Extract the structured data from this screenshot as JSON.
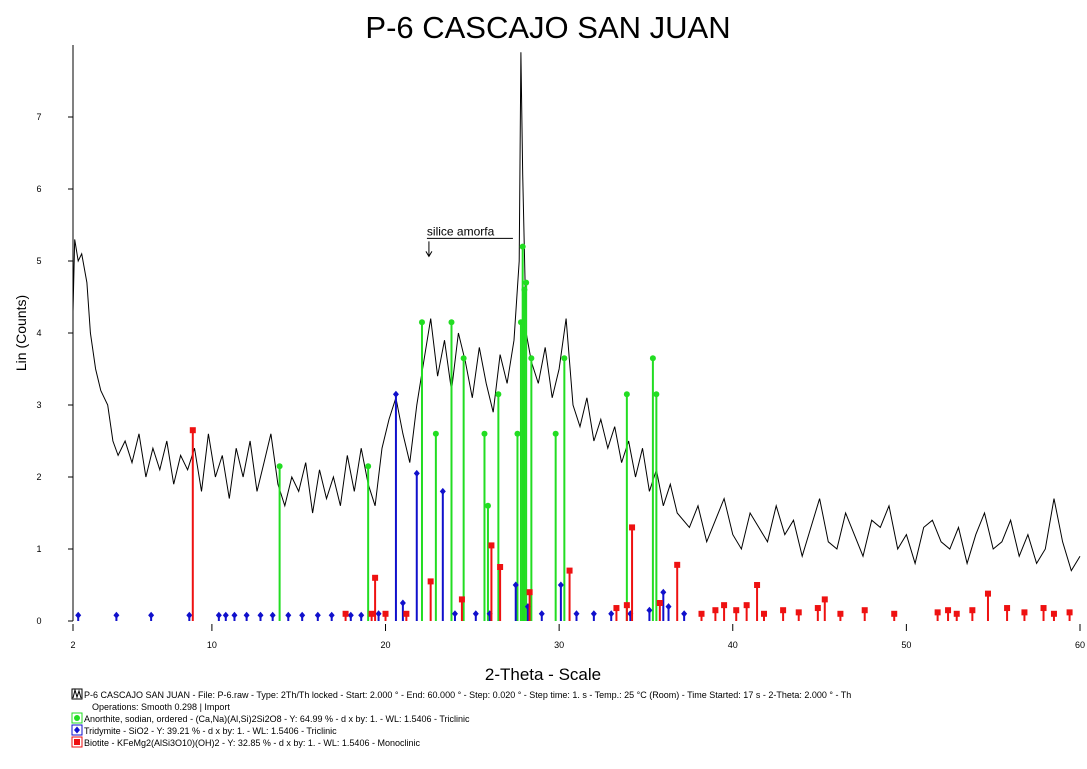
{
  "chart_data": {
    "type": "line",
    "title": "P-6 CASCAJO SAN JUAN",
    "x_label": "2-Theta - Scale",
    "y_label": "Lin (Counts)",
    "xlim": [
      2,
      60
    ],
    "ylim": [
      0,
      8
    ],
    "xticks": [
      2,
      10,
      20,
      30,
      40,
      50,
      60
    ],
    "yticks": [
      0,
      1,
      2,
      3,
      4,
      5,
      6,
      7
    ],
    "annotation": {
      "text": "silice amorfa",
      "x": 22.5,
      "y": 5.3
    },
    "legend_note": "Operations: Smooth 0.298 | Import",
    "series": [
      {
        "name": "P-6 CASCAJO SAN JUAN - File: P-6.raw - Type: 2Th/Th locked - Start: 2.000 ° - End: 60.000 ° - Step: 0.020 ° - Step time: 1. s - Temp.: 25 °C (Room) - Time Started: 17 s - 2-Theta: 2.000 ° - Th",
        "color": "#000000",
        "style": "line",
        "x": [
          2.0,
          2.1,
          2.3,
          2.5,
          2.8,
          3.0,
          3.3,
          3.6,
          4.0,
          4.3,
          4.6,
          5.0,
          5.4,
          5.8,
          6.2,
          6.6,
          7.0,
          7.4,
          7.8,
          8.2,
          8.6,
          9.0,
          9.4,
          9.8,
          10.2,
          10.6,
          11.0,
          11.4,
          11.8,
          12.2,
          12.6,
          13.0,
          13.4,
          13.8,
          14.2,
          14.6,
          15.0,
          15.4,
          15.8,
          16.2,
          16.6,
          17.0,
          17.4,
          17.8,
          18.2,
          18.6,
          19.0,
          19.4,
          19.8,
          20.2,
          20.6,
          21.0,
          21.4,
          21.8,
          22.2,
          22.6,
          23.0,
          23.4,
          23.8,
          24.2,
          24.6,
          25.0,
          25.4,
          25.8,
          26.2,
          26.6,
          27.0,
          27.4,
          27.7,
          27.8,
          27.9,
          28.1,
          28.4,
          28.8,
          29.2,
          29.6,
          30.0,
          30.4,
          30.8,
          31.2,
          31.6,
          32.0,
          32.4,
          32.8,
          33.2,
          33.6,
          34.0,
          34.4,
          34.8,
          35.2,
          35.6,
          36.0,
          36.4,
          36.8,
          37.5,
          38.0,
          38.5,
          39.0,
          39.5,
          40.0,
          40.5,
          41.0,
          41.5,
          42.0,
          42.5,
          43.0,
          43.5,
          44.0,
          44.5,
          45.0,
          45.5,
          46.0,
          46.5,
          47.0,
          47.5,
          48.0,
          48.5,
          49.0,
          49.5,
          50.0,
          50.5,
          51.0,
          51.5,
          52.0,
          52.5,
          53.0,
          53.5,
          54.0,
          54.5,
          55.0,
          55.5,
          56.0,
          56.5,
          57.0,
          57.5,
          58.0,
          58.5,
          59.0,
          59.5,
          60.0
        ],
        "values": [
          4.3,
          5.3,
          5.0,
          5.1,
          4.7,
          4.0,
          3.5,
          3.2,
          3.0,
          2.5,
          2.3,
          2.5,
          2.2,
          2.6,
          2.0,
          2.4,
          2.1,
          2.5,
          1.9,
          2.3,
          2.1,
          2.4,
          1.8,
          2.6,
          2.0,
          2.3,
          1.7,
          2.4,
          2.0,
          2.5,
          1.8,
          2.2,
          2.6,
          1.9,
          1.6,
          2.0,
          1.8,
          2.2,
          1.5,
          2.1,
          1.7,
          2.0,
          1.6,
          2.3,
          1.8,
          2.4,
          1.9,
          1.6,
          2.4,
          2.8,
          3.1,
          2.6,
          2.2,
          3.0,
          3.6,
          4.2,
          3.4,
          3.9,
          3.2,
          4.0,
          3.6,
          3.1,
          3.8,
          3.3,
          2.9,
          3.7,
          3.3,
          3.9,
          5.0,
          7.9,
          6.2,
          4.0,
          3.6,
          3.3,
          3.8,
          3.1,
          3.5,
          4.2,
          3.0,
          2.7,
          3.1,
          2.5,
          2.8,
          2.4,
          2.7,
          2.2,
          2.5,
          2.0,
          2.4,
          1.8,
          2.1,
          1.6,
          1.9,
          1.5,
          1.3,
          1.6,
          1.1,
          1.4,
          1.7,
          1.2,
          1.0,
          1.5,
          1.3,
          1.1,
          1.6,
          1.2,
          1.4,
          0.9,
          1.3,
          1.7,
          1.1,
          1.0,
          1.5,
          1.2,
          0.9,
          1.4,
          1.3,
          1.6,
          1.0,
          1.2,
          0.8,
          1.3,
          1.4,
          1.1,
          1.0,
          1.3,
          0.8,
          1.2,
          1.5,
          1.0,
          1.1,
          1.4,
          0.9,
          1.2,
          0.8,
          1.0,
          1.7,
          1.1,
          0.7,
          0.9
        ]
      },
      {
        "name": "Anorthite, sodian, ordered - (Ca,Na)(Al,Si)2Si2O8 - Y: 64.99 % - d x by: 1. - WL: 1.5406 - Triclinic",
        "color": "#22dd22",
        "style": "stick",
        "marker": "circle",
        "x": [
          13.9,
          19.0,
          22.1,
          22.9,
          23.8,
          24.5,
          25.7,
          25.9,
          26.5,
          27.6,
          27.8,
          27.9,
          28.0,
          28.1,
          28.4,
          29.8,
          30.3,
          33.9,
          35.4,
          35.6
        ],
        "values": [
          2.15,
          2.15,
          4.15,
          2.6,
          4.15,
          3.65,
          2.6,
          1.6,
          3.15,
          2.6,
          4.15,
          5.2,
          4.6,
          4.7,
          3.65,
          2.6,
          3.65,
          3.15,
          3.65,
          3.15
        ]
      },
      {
        "name": "Tridymite - SiO2 - Y: 39.21 % - d x by: 1. - WL: 1.5406 - Triclinic",
        "color": "#1010cc",
        "style": "stick",
        "marker": "diamond",
        "x": [
          2.3,
          4.5,
          6.5,
          8.7,
          10.4,
          10.8,
          11.3,
          12.0,
          12.8,
          13.5,
          14.4,
          15.2,
          16.1,
          16.9,
          18.0,
          18.6,
          19.6,
          20.6,
          21.0,
          21.8,
          23.3,
          24.0,
          25.2,
          26.0,
          27.5,
          28.2,
          29.0,
          30.1,
          31.0,
          32.0,
          33.0,
          34.1,
          35.2,
          36.0,
          36.3,
          37.2
        ],
        "values": [
          0.08,
          0.08,
          0.08,
          0.08,
          0.08,
          0.08,
          0.08,
          0.08,
          0.08,
          0.08,
          0.08,
          0.08,
          0.08,
          0.08,
          0.08,
          0.08,
          0.1,
          3.15,
          0.25,
          2.05,
          1.8,
          0.1,
          0.1,
          0.1,
          0.5,
          0.2,
          0.1,
          0.5,
          0.1,
          0.1,
          0.1,
          0.1,
          0.15,
          0.4,
          0.2,
          0.1
        ]
      },
      {
        "name": "Biotite - KFeMg2(AlSi3O10)(OH)2 - Y: 32.85 % - d x by: 1. - WL: 1.5406 - Monoclinic",
        "color": "#ee1111",
        "style": "stick",
        "marker": "square",
        "x": [
          8.9,
          17.7,
          19.2,
          19.4,
          20.0,
          21.2,
          22.6,
          24.4,
          26.1,
          26.6,
          28.3,
          30.6,
          33.3,
          33.9,
          34.2,
          35.8,
          36.8,
          38.2,
          39.0,
          39.5,
          40.2,
          40.8,
          41.4,
          41.8,
          42.9,
          43.8,
          44.9,
          45.3,
          46.2,
          47.6,
          49.3,
          51.8,
          52.4,
          52.9,
          53.8,
          54.7,
          55.8,
          56.8,
          57.9,
          58.5,
          59.4
        ],
        "values": [
          2.65,
          0.1,
          0.1,
          0.6,
          0.1,
          0.1,
          0.55,
          0.3,
          1.05,
          0.75,
          0.4,
          0.7,
          0.18,
          0.22,
          1.3,
          0.25,
          0.78,
          0.1,
          0.15,
          0.22,
          0.15,
          0.22,
          0.5,
          0.1,
          0.15,
          0.12,
          0.18,
          0.3,
          0.1,
          0.15,
          0.1,
          0.12,
          0.15,
          0.1,
          0.15,
          0.38,
          0.18,
          0.12,
          0.18,
          0.1,
          0.12
        ]
      }
    ]
  }
}
